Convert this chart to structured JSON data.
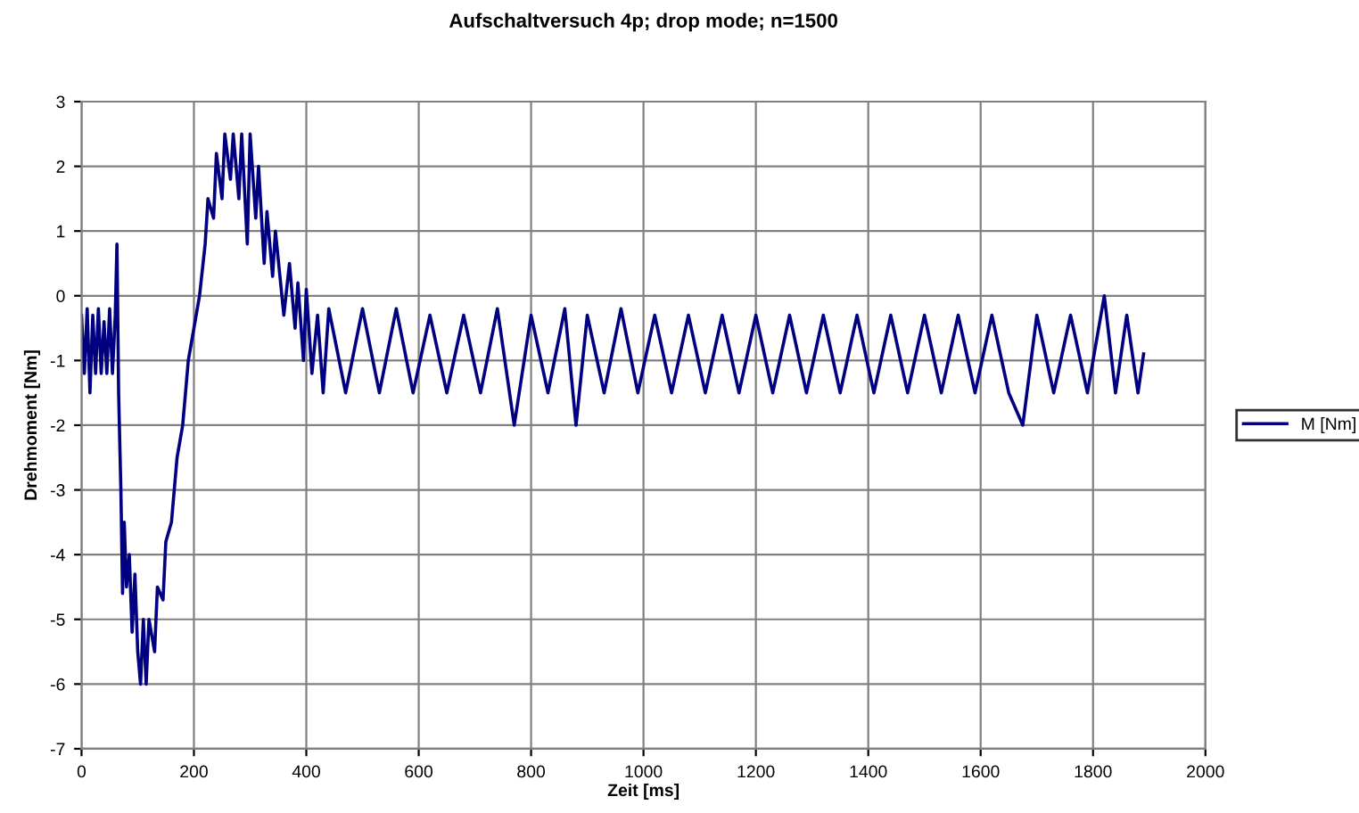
{
  "chart_data": {
    "type": "line",
    "title": "Aufschaltversuch 4p; drop mode; n=1500",
    "xlabel": "Zeit [ms]",
    "ylabel": "Drehmoment [Nm]",
    "xlim": [
      0,
      2000
    ],
    "xticks": [
      0,
      200,
      400,
      600,
      800,
      1000,
      1200,
      1400,
      1600,
      1800,
      2000
    ],
    "ylim": [
      -7,
      3
    ],
    "yticks": [
      -7,
      -6,
      -5,
      -4,
      -3,
      -2,
      -1,
      0,
      1,
      2,
      3
    ],
    "grid": true,
    "legend": "right",
    "marker": "none",
    "line_style": "solid",
    "series": [
      {
        "name": "M [Nm]",
        "color": "#000080",
        "x": [
          0,
          5,
          10,
          15,
          20,
          25,
          30,
          35,
          40,
          45,
          50,
          55,
          60,
          63,
          66,
          70,
          73,
          76,
          80,
          85,
          90,
          95,
          100,
          105,
          110,
          115,
          120,
          130,
          135,
          145,
          150,
          160,
          170,
          180,
          190,
          200,
          210,
          220,
          225,
          235,
          240,
          250,
          255,
          265,
          270,
          280,
          285,
          295,
          300,
          310,
          315,
          325,
          330,
          340,
          345,
          360,
          370,
          380,
          385,
          395,
          400,
          410,
          420,
          430,
          440,
          470,
          500,
          530,
          560,
          590,
          620,
          650,
          680,
          710,
          740,
          770,
          800,
          830,
          860,
          880,
          900,
          930,
          960,
          990,
          1020,
          1050,
          1080,
          1110,
          1140,
          1170,
          1200,
          1230,
          1260,
          1290,
          1320,
          1350,
          1380,
          1410,
          1440,
          1470,
          1500,
          1530,
          1560,
          1590,
          1620,
          1650,
          1675,
          1700,
          1730,
          1760,
          1790,
          1820,
          1840,
          1860,
          1880,
          1890
        ],
        "values": [
          -0.3,
          -1.2,
          -0.2,
          -1.5,
          -0.3,
          -1.2,
          -0.2,
          -1.2,
          -0.4,
          -1.2,
          -0.2,
          -1.2,
          -0.3,
          0.8,
          -1.5,
          -3.0,
          -4.6,
          -3.5,
          -4.5,
          -4.0,
          -5.2,
          -4.3,
          -5.5,
          -6.0,
          -5.0,
          -6.0,
          -5.0,
          -5.5,
          -4.5,
          -4.7,
          -3.8,
          -3.5,
          -2.5,
          -2.0,
          -1.0,
          -0.5,
          0.0,
          0.8,
          1.5,
          1.2,
          2.2,
          1.5,
          2.5,
          1.8,
          2.5,
          1.5,
          2.5,
          0.8,
          2.5,
          1.2,
          2.0,
          0.5,
          1.3,
          0.3,
          1.0,
          -0.3,
          0.5,
          -0.5,
          0.2,
          -1.0,
          0.1,
          -1.2,
          -0.3,
          -1.5,
          -0.2,
          -1.5,
          -0.2,
          -1.5,
          -0.2,
          -1.5,
          -0.3,
          -1.5,
          -0.3,
          -1.5,
          -0.2,
          -2.0,
          -0.3,
          -1.5,
          -0.2,
          -2.0,
          -0.3,
          -1.5,
          -0.2,
          -1.5,
          -0.3,
          -1.5,
          -0.3,
          -1.5,
          -0.3,
          -1.5,
          -0.3,
          -1.5,
          -0.3,
          -1.5,
          -0.3,
          -1.5,
          -0.3,
          -1.5,
          -0.3,
          -1.5,
          -0.3,
          -1.5,
          -0.3,
          -1.5,
          -0.3,
          -1.5,
          -2.0,
          -0.3,
          -1.5,
          -0.3,
          -1.5,
          0.0,
          -1.5,
          -0.3,
          -1.5,
          -0.9
        ]
      }
    ]
  }
}
